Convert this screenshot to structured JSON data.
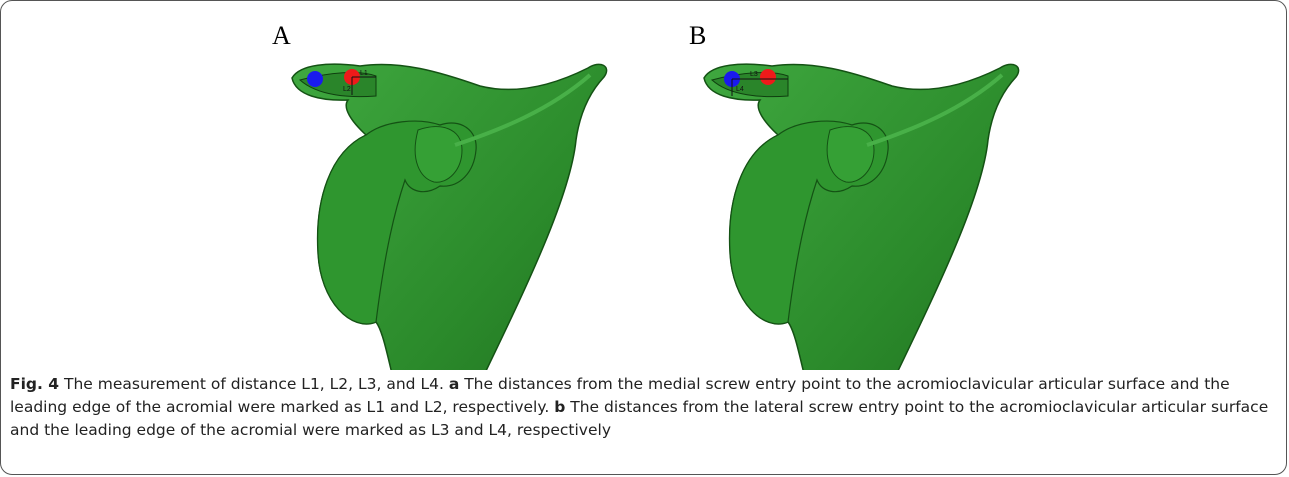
{
  "panels": [
    {
      "label": "A",
      "markers": [
        "L1",
        "L2"
      ]
    },
    {
      "label": "B",
      "markers": [
        "L3",
        "L4"
      ]
    }
  ],
  "caption": {
    "figure": "Fig. 4",
    "title": "The measurement of distance L1, L2, L3, and L4.",
    "parts": [
      {
        "label": "a",
        "text": "The distances from the medial screw entry point to the acromioclavicular articular surface and the leading edge of the acromial were marked as L1 and L2, respectively."
      },
      {
        "label": "b",
        "text": "The distances from the lateral screw entry point to the acromioclavicular articular surface and the leading edge of the acromial were marked as L3 and L4, respectively"
      }
    ]
  }
}
